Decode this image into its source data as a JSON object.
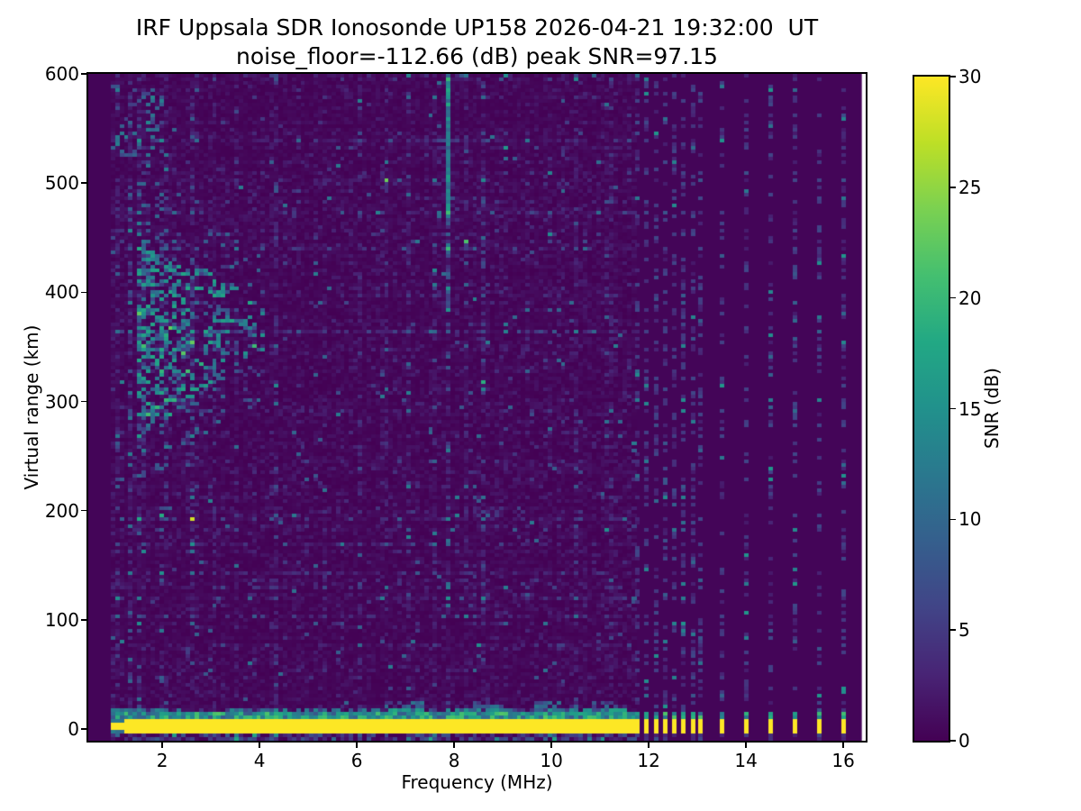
{
  "chart_data": {
    "type": "heatmap",
    "title": "IRF Uppsala SDR Ionosonde UP158 2026-04-21 19:32:00  UT",
    "subtitle": "noise_floor=-112.66 (dB) peak SNR=97.15",
    "station": "UP158",
    "timestamp_ut": "2026-04-21 19:32:00",
    "noise_floor_db": -112.66,
    "peak_snr_db": 97.15,
    "xlabel": "Frequency (MHz)",
    "ylabel": "Virtual range (km)",
    "colorbar_label": "SNR (dB)",
    "xlim": [
      0.48,
      16.46
    ],
    "ylim": [
      -10.7,
      600
    ],
    "x_ticks": [
      2,
      4,
      6,
      8,
      10,
      12,
      14,
      16
    ],
    "y_ticks": [
      0,
      100,
      200,
      300,
      400,
      500,
      600
    ],
    "snr_min_db": 0,
    "snr_max_db": 30,
    "colorbar_ticks": [
      0,
      5,
      10,
      15,
      20,
      25,
      30
    ],
    "colormap": {
      "name": "viridis",
      "stops": [
        "#440154",
        "#482475",
        "#414487",
        "#355f8d",
        "#2a788e",
        "#21918c",
        "#22a884",
        "#44bf70",
        "#7ad151",
        "#bddf26",
        "#fde725"
      ]
    },
    "data_freq_range_mhz": [
      0.48,
      16.38
    ],
    "continuous_sweep_mhz": [
      0.95,
      11.72
    ],
    "discrete_freqs_mhz": [
      11.76,
      11.95,
      12.14,
      12.33,
      12.52,
      12.71,
      12.9,
      13.06,
      13.5,
      14.0,
      14.5,
      15.0,
      15.5,
      16.0
    ],
    "ground_band": {
      "virtual_range_km": [
        -3.2,
        10.5
      ],
      "snr_db": 30
    },
    "ground_fringe_zones_mhz": [
      [
        6.6,
        7.3
      ],
      [
        8.2,
        9.0
      ],
      [
        9.6,
        11.55
      ]
    ],
    "echo_region": {
      "freq_mhz": [
        1.42,
        4.05
      ],
      "virtual_range_km": [
        265,
        445
      ],
      "snr_db_range": [
        5,
        20
      ]
    },
    "upper_echo_scatter": {
      "freq_mhz": [
        1.45,
        2.1
      ],
      "virtual_range_km": [
        430,
        505
      ]
    },
    "top_left_scatter": {
      "freq_mhz": [
        0.98,
        1.95
      ],
      "virtual_range_km": [
        515,
        588
      ]
    },
    "interference_stripes": [
      {
        "freq": 1.05,
        "gain": 1.9
      },
      {
        "freq": 1.3,
        "gain": 2.3
      },
      {
        "freq": 1.55,
        "gain": 1.9
      },
      {
        "freq": 2.0,
        "gain": 1.7
      },
      {
        "freq": 2.6,
        "gain": 1.7
      },
      {
        "freq": 3.05,
        "gain": 2.4
      },
      {
        "freq": 3.5,
        "gain": 1.6
      },
      {
        "freq": 4.3,
        "gain": 1.8
      },
      {
        "freq": 4.75,
        "gain": 1.5
      },
      {
        "freq": 5.3,
        "gain": 1.5
      },
      {
        "freq": 6.0,
        "gain": 1.5
      },
      {
        "freq": 6.55,
        "gain": 1.6
      },
      {
        "freq": 7.0,
        "gain": 1.5
      },
      {
        "freq": 7.55,
        "gain": 1.6
      },
      {
        "freq": 7.85,
        "gain": 2.2,
        "top": true
      },
      {
        "freq": 8.2,
        "gain": 1.8
      },
      {
        "freq": 8.6,
        "gain": 1.9
      },
      {
        "freq": 9.3,
        "gain": 1.5
      },
      {
        "freq": 9.9,
        "gain": 1.6
      },
      {
        "freq": 10.5,
        "gain": 1.7
      },
      {
        "freq": 11.15,
        "gain": 2.0
      }
    ],
    "noise": {
      "seed": 7,
      "freq_step_mhz": 0.0907,
      "n_range_rows": 185,
      "base_mean_db": 0.8
    }
  }
}
